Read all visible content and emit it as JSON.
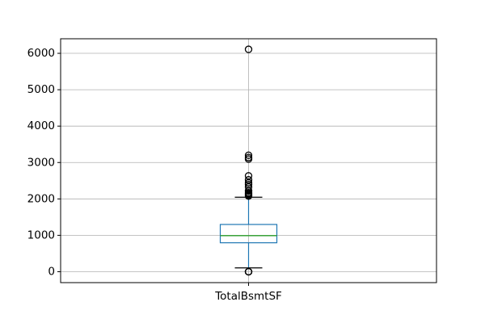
{
  "chart_data": {
    "type": "boxplot",
    "title": "",
    "xlabel": "",
    "ylabel": "",
    "grid": true,
    "ylim": [
      -300,
      6400
    ],
    "yticks": [
      0,
      1000,
      2000,
      3000,
      4000,
      5000,
      6000
    ],
    "categories": [
      "TotalBsmtSF"
    ],
    "boxes": [
      {
        "category": "TotalBsmtSF",
        "whisker_low": 105,
        "q1": 795,
        "median": 991,
        "q3": 1298,
        "whisker_high": 2046,
        "outliers": [
          0,
          0,
          0,
          2078,
          2097,
          2110,
          2136,
          2153,
          2171,
          2217,
          2223,
          2330,
          2396,
          2444,
          2524,
          2633,
          3094,
          3138,
          3200,
          6110
        ]
      }
    ],
    "colors": {
      "box": "#1f77b4",
      "whisker": "#1f77b4",
      "cap": "#000000",
      "median": "#2ca02c",
      "grid": "#b0b0b0",
      "frame": "#000000"
    }
  }
}
